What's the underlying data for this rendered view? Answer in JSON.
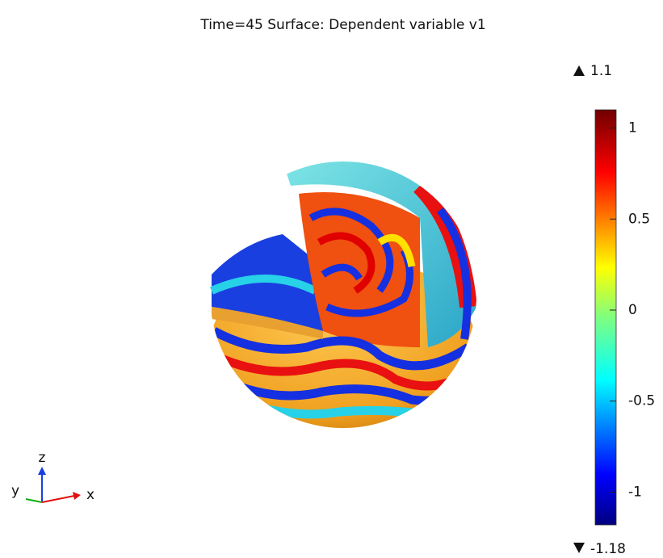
{
  "chart_data": {
    "type": "surface",
    "title": "Time=45    Surface: Dependent variable v1",
    "clim": [
      -1.18,
      1.1
    ],
    "cticks": [
      -1,
      -0.5,
      0,
      0.5,
      1
    ],
    "axes_triad": [
      "x",
      "y",
      "z"
    ]
  }
}
